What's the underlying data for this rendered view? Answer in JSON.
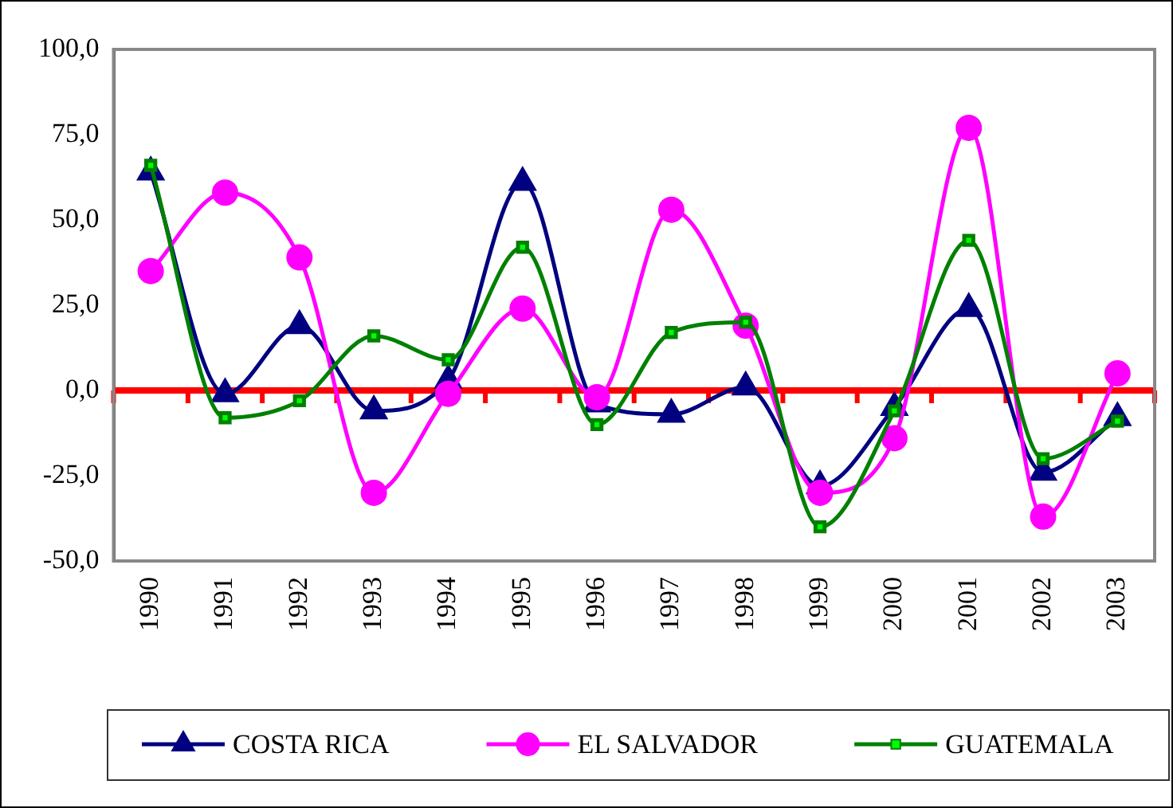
{
  "chart_data": {
    "type": "line",
    "categories": [
      "1990",
      "1991",
      "1992",
      "1993",
      "1994",
      "1995",
      "1996",
      "1997",
      "1998",
      "1999",
      "2000",
      "2001",
      "2002",
      "2003"
    ],
    "series": [
      {
        "name": "COSTA RICA",
        "color": "#000080",
        "marker": "triangle",
        "values": [
          64,
          -1,
          19,
          -6,
          3,
          61,
          -4,
          -7,
          1,
          -28,
          -5,
          24,
          -24,
          -8
        ]
      },
      {
        "name": "EL SALVADOR",
        "color": "#ff00ff",
        "marker": "circle",
        "values": [
          35,
          58,
          39,
          -30,
          -1,
          24,
          -2,
          53,
          19,
          -30,
          -14,
          77,
          -37,
          5
        ]
      },
      {
        "name": "GUATEMALA",
        "color": "#008000",
        "marker": "square",
        "values": [
          66,
          -8,
          -3,
          16,
          9,
          42,
          -10,
          17,
          20,
          -40,
          -6,
          44,
          -20,
          -9
        ]
      }
    ],
    "ylim": [
      -50,
      100
    ],
    "yticks": [
      {
        "value": -50,
        "label": "-50,0"
      },
      {
        "value": -25,
        "label": "-25,0"
      },
      {
        "value": 0,
        "label": "0,0"
      },
      {
        "value": 25,
        "label": "25,0"
      },
      {
        "value": 50,
        "label": "50,0"
      },
      {
        "value": 75,
        "label": "75,0"
      },
      {
        "value": 100,
        "label": "100,0"
      }
    ],
    "ref_lines": [
      {
        "axis": "y",
        "value": 0,
        "color": "#ff0000"
      }
    ],
    "grid": false,
    "legend": "bottom"
  }
}
